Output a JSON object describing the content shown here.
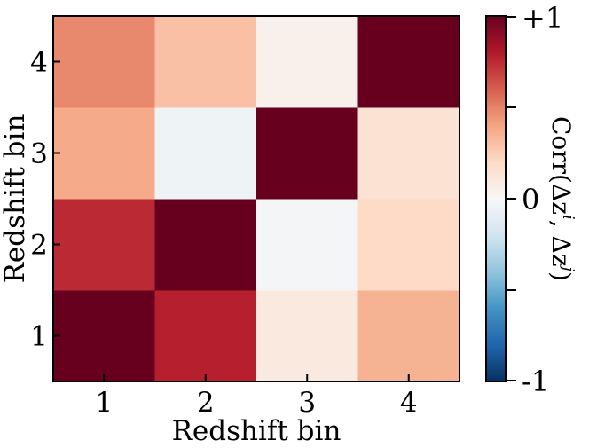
{
  "chart_data": {
    "type": "heatmap",
    "xlabel": "Redshift bin",
    "ylabel": "Redshift bin",
    "x_categories": [
      "1",
      "2",
      "3",
      "4"
    ],
    "y_categories": [
      "1",
      "2",
      "3",
      "4"
    ],
    "values": [
      [
        1.0,
        0.78,
        0.1,
        0.35
      ],
      [
        0.75,
        1.0,
        -0.02,
        0.2
      ],
      [
        0.38,
        -0.05,
        1.0,
        0.15
      ],
      [
        0.48,
        0.3,
        0.05,
        1.0
      ]
    ],
    "colorbar": {
      "label": "Corr(Δz^i, Δz^j)",
      "label_main": "Corr(Δz",
      "label_sup_i": "i",
      "label_mid": ", Δz",
      "label_sup_j": "j",
      "label_end": ")",
      "range": [
        -1,
        1
      ],
      "tick_labels": {
        "top": "+1",
        "mid": "0",
        "bottom": "-1"
      },
      "colormap": "RdBu_r"
    }
  }
}
